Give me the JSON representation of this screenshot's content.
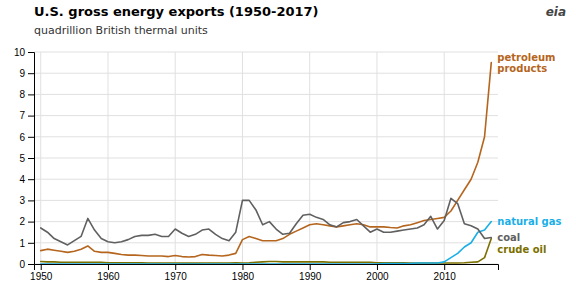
{
  "chart_data": {
    "type": "line",
    "title": "U.S. gross energy exports (1950-2017)",
    "subtitle": "quadrillion British thermal units",
    "annotations": [
      "eia"
    ],
    "x": [
      1950,
      1951,
      1952,
      1953,
      1954,
      1955,
      1956,
      1957,
      1958,
      1959,
      1960,
      1961,
      1962,
      1963,
      1964,
      1965,
      1966,
      1967,
      1968,
      1969,
      1970,
      1971,
      1972,
      1973,
      1974,
      1975,
      1976,
      1977,
      1978,
      1979,
      1980,
      1981,
      1982,
      1983,
      1984,
      1985,
      1986,
      1987,
      1988,
      1989,
      1990,
      1991,
      1992,
      1993,
      1994,
      1995,
      1996,
      1997,
      1998,
      1999,
      2000,
      2001,
      2002,
      2003,
      2004,
      2005,
      2006,
      2007,
      2008,
      2009,
      2010,
      2011,
      2012,
      2013,
      2014,
      2015,
      2016,
      2017
    ],
    "xlim": [
      1949,
      2018
    ],
    "xticks": [
      1950,
      1960,
      1970,
      1980,
      1990,
      2000,
      2010
    ],
    "ylim": [
      0,
      10
    ],
    "yticks": [
      0,
      1,
      2,
      3,
      4,
      5,
      6,
      7,
      8,
      9,
      10
    ],
    "grid": true,
    "series": [
      {
        "name": "crude oil",
        "color": "#7b7000",
        "values": [
          0.12,
          0.1,
          0.1,
          0.08,
          0.08,
          0.08,
          0.08,
          0.08,
          0.08,
          0.08,
          0.06,
          0.06,
          0.06,
          0.06,
          0.06,
          0.06,
          0.05,
          0.05,
          0.05,
          0.05,
          0.05,
          0.04,
          0.04,
          0.04,
          0.05,
          0.05,
          0.05,
          0.05,
          0.05,
          0.06,
          0.05,
          0.06,
          0.08,
          0.1,
          0.12,
          0.12,
          0.1,
          0.1,
          0.1,
          0.1,
          0.1,
          0.1,
          0.1,
          0.08,
          0.08,
          0.08,
          0.08,
          0.08,
          0.08,
          0.08,
          0.06,
          0.06,
          0.06,
          0.06,
          0.06,
          0.05,
          0.05,
          0.05,
          0.05,
          0.05,
          0.05,
          0.05,
          0.05,
          0.06,
          0.08,
          0.1,
          0.3,
          1.2
        ]
      },
      {
        "name": "natural gas",
        "color": "#1aafe6",
        "values": [
          0.0,
          0.0,
          0.0,
          0.0,
          0.0,
          0.0,
          0.0,
          0.0,
          0.0,
          0.0,
          0.0,
          0.0,
          0.0,
          0.0,
          0.0,
          0.0,
          0.0,
          0.0,
          0.0,
          0.0,
          0.0,
          0.0,
          0.0,
          0.0,
          0.0,
          0.0,
          0.0,
          0.0,
          0.0,
          0.0,
          0.0,
          0.0,
          0.0,
          0.0,
          0.0,
          0.0,
          0.0,
          0.0,
          0.0,
          0.0,
          0.0,
          0.0,
          0.0,
          0.0,
          0.0,
          0.0,
          0.0,
          0.0,
          0.0,
          0.0,
          0.0,
          0.02,
          0.02,
          0.02,
          0.02,
          0.02,
          0.05,
          0.05,
          0.05,
          0.05,
          0.1,
          0.3,
          0.5,
          0.8,
          1.0,
          1.5,
          1.6,
          2.0
        ]
      },
      {
        "name": "petroleum\nproducts",
        "color": "#b5651d",
        "values": [
          0.63,
          0.7,
          0.65,
          0.6,
          0.55,
          0.6,
          0.7,
          0.85,
          0.6,
          0.55,
          0.55,
          0.5,
          0.45,
          0.42,
          0.42,
          0.4,
          0.38,
          0.38,
          0.38,
          0.35,
          0.4,
          0.35,
          0.33,
          0.35,
          0.45,
          0.42,
          0.4,
          0.38,
          0.42,
          0.5,
          1.15,
          1.3,
          1.2,
          1.1,
          1.1,
          1.1,
          1.2,
          1.4,
          1.55,
          1.7,
          1.85,
          1.9,
          1.85,
          1.8,
          1.75,
          1.8,
          1.85,
          1.9,
          1.85,
          1.75,
          1.75,
          1.75,
          1.72,
          1.7,
          1.8,
          1.85,
          1.95,
          2.05,
          2.1,
          2.15,
          2.2,
          2.5,
          3.0,
          3.5,
          4.0,
          4.8,
          6.0,
          9.5
        ]
      },
      {
        "name": "coal",
        "color": "#606060",
        "values": [
          1.7,
          1.5,
          1.2,
          1.05,
          0.9,
          1.1,
          1.3,
          2.15,
          1.6,
          1.2,
          1.05,
          1.0,
          1.05,
          1.15,
          1.3,
          1.35,
          1.35,
          1.4,
          1.3,
          1.3,
          1.65,
          1.45,
          1.3,
          1.4,
          1.6,
          1.65,
          1.4,
          1.2,
          1.1,
          1.5,
          3.0,
          3.0,
          2.55,
          1.85,
          2.0,
          1.65,
          1.4,
          1.45,
          1.9,
          2.3,
          2.35,
          2.2,
          2.1,
          1.85,
          1.75,
          1.95,
          2.0,
          2.1,
          1.8,
          1.5,
          1.65,
          1.5,
          1.5,
          1.55,
          1.6,
          1.65,
          1.7,
          1.85,
          2.25,
          1.65,
          2.05,
          3.1,
          2.85,
          1.9,
          1.8,
          1.65,
          1.2,
          1.25
        ]
      }
    ]
  }
}
